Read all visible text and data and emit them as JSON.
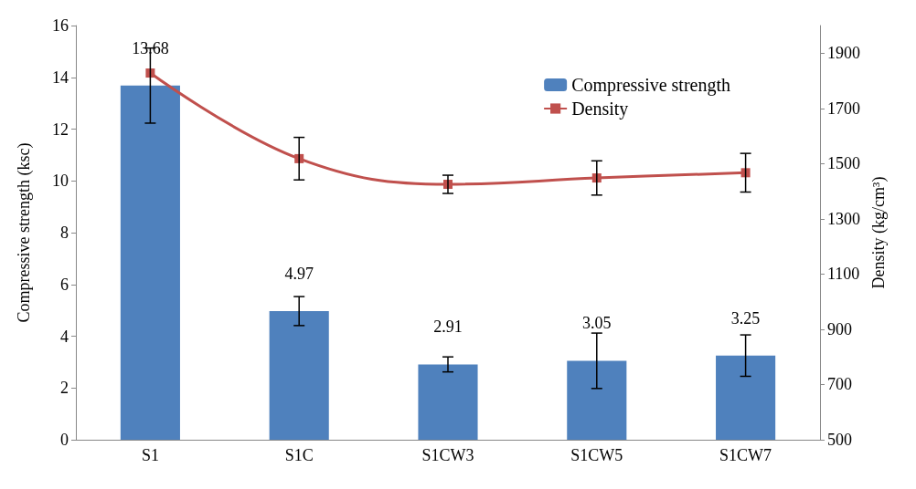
{
  "chart_data": {
    "type": "bar",
    "categories": [
      "S1",
      "S1C",
      "S1CW3",
      "S1CW5",
      "S1CW7"
    ],
    "ylabel": "Compressive strength (ksc)",
    "y2label": "Density (kg/cm³)",
    "ylim": [
      0,
      16
    ],
    "yticks": [
      0,
      2,
      4,
      6,
      8,
      10,
      12,
      14,
      16
    ],
    "y2lim": [
      500,
      2000
    ],
    "y2ticks": [
      500,
      700,
      900,
      1100,
      1300,
      1500,
      1700,
      1900
    ],
    "grid": false,
    "legend": "top right",
    "series": [
      {
        "name": "Compressive strength",
        "color": "#4f81bd",
        "values": [
          13.68,
          4.97,
          2.91,
          3.05,
          3.25
        ],
        "errors": [
          1.45,
          0.56,
          0.29,
          1.07,
          0.8
        ],
        "data_labels": true
      },
      {
        "name": "Density",
        "type": "line",
        "axis": "y2",
        "color": "#c0504d",
        "marker": "square",
        "line_style": "solid",
        "values": [
          1828,
          1518,
          1425,
          1448,
          1467
        ],
        "errors": [
          null,
          77,
          33,
          62,
          70
        ]
      }
    ]
  }
}
